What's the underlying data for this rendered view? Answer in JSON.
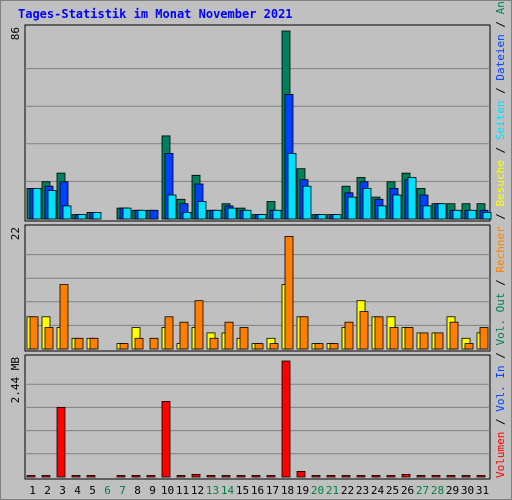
{
  "title": "Tages-Statistik im Monat November 2021",
  "chart_data": {
    "type": "bar",
    "categories": [
      "1",
      "2",
      "3",
      "4",
      "5",
      "6",
      "7",
      "8",
      "9",
      "10",
      "11",
      "12",
      "13",
      "14",
      "15",
      "16",
      "17",
      "18",
      "19",
      "20",
      "21",
      "22",
      "23",
      "24",
      "25",
      "26",
      "27",
      "28",
      "29",
      "30",
      "31"
    ],
    "weekend_days": [
      "6",
      "7",
      "13",
      "14",
      "20",
      "21",
      "27",
      "28"
    ],
    "panels": [
      {
        "ymax": 86,
        "ymax_label": "86",
        "series": [
          {
            "name": "Anfragen",
            "color": "#00805c",
            "values": [
              14,
              17,
              21,
              2,
              3,
              0,
              5,
              4,
              4,
              38,
              9,
              20,
              4,
              7,
              5,
              2,
              8,
              86,
              23,
              2,
              2,
              15,
              19,
              10,
              17,
              21,
              14,
              7,
              7,
              7,
              7
            ]
          },
          {
            "name": "Dateien",
            "color": "#0040ff",
            "values": [
              14,
              15,
              17,
              2,
              3,
              0,
              5,
              4,
              4,
              30,
              7,
              16,
              4,
              6,
              4,
              2,
              4,
              57,
              18,
              2,
              2,
              12,
              17,
              9,
              14,
              18,
              11,
              7,
              4,
              4,
              4
            ]
          },
          {
            "name": "Seiten",
            "color": "#00e0ff",
            "values": [
              14,
              13,
              6,
              2,
              3,
              0,
              5,
              4,
              0,
              11,
              3,
              8,
              4,
              5,
              4,
              2,
              4,
              30,
              15,
              2,
              2,
              10,
              14,
              6,
              11,
              19,
              6,
              7,
              4,
              4,
              3
            ]
          }
        ]
      },
      {
        "ymax": 22,
        "ymax_label": "22",
        "series": [
          {
            "name": "Besuche",
            "color": "#ffff00",
            "values": [
              6,
              6,
              4,
              2,
              2,
              0,
              1,
              4,
              0,
              4,
              1,
              4,
              3,
              3,
              2,
              1,
              2,
              12,
              6,
              1,
              1,
              4,
              9,
              6,
              6,
              4,
              3,
              3,
              6,
              2,
              3
            ]
          },
          {
            "name": "Rechner",
            "color": "#ff8000",
            "values": [
              6,
              4,
              12,
              2,
              2,
              0,
              1,
              2,
              2,
              6,
              5,
              9,
              2,
              5,
              4,
              1,
              1,
              21,
              6,
              1,
              1,
              5,
              7,
              6,
              4,
              4,
              3,
              3,
              5,
              1,
              4
            ]
          }
        ]
      },
      {
        "ymax": 2.7,
        "ymax_label": "2.44 MB",
        "tick_value": 2.44,
        "series": [
          {
            "name": "Volumen",
            "color": "#ff0000",
            "values": [
              0.03,
              0.03,
              1.62,
              0.03,
              0.03,
              0,
              0.03,
              0.03,
              0.03,
              1.76,
              0.03,
              0.06,
              0.03,
              0.03,
              0.03,
              0.03,
              0.03,
              2.7,
              0.13,
              0.03,
              0.03,
              0.03,
              0.03,
              0.03,
              0.03,
              0.06,
              0.03,
              0.03,
              0.03,
              0.03,
              0.03
            ]
          },
          {
            "name": "Vol. In",
            "color": "#0040ff",
            "values": []
          },
          {
            "name": "Vol. Out",
            "color": "#00805c",
            "values": []
          }
        ]
      }
    ],
    "legend": [
      {
        "name": "Volumen",
        "color": "#ff0000"
      },
      {
        "name": "Vol. In",
        "color": "#0040ff"
      },
      {
        "name": "Vol. Out",
        "color": "#00805c"
      },
      {
        "name": "Rechner",
        "color": "#ff8000"
      },
      {
        "name": "Besuche",
        "color": "#ffff00"
      },
      {
        "name": "Seiten",
        "color": "#00e0ff"
      },
      {
        "name": "Dateien",
        "color": "#0040ff"
      },
      {
        "name": "Anfragen",
        "color": "#00805c"
      }
    ],
    "legend_separator": " / ",
    "legend_placement": "right-vertical",
    "grid": true
  }
}
